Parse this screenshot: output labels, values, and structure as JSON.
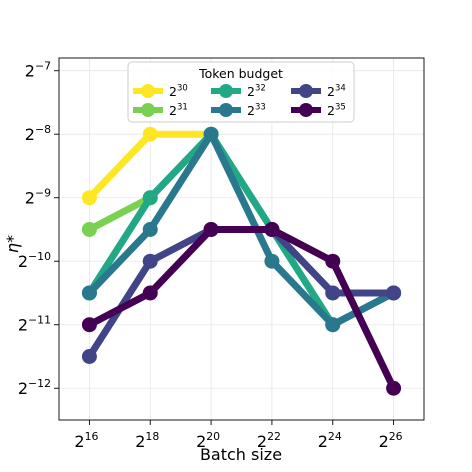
{
  "chart_data": {
    "type": "line",
    "xlabel": "Batch size",
    "ylabel": "η*",
    "x_scale": "log2",
    "y_scale": "log2",
    "x_exponents": [
      16,
      18,
      20,
      22,
      24,
      26
    ],
    "y_exponents": [
      -7,
      -8,
      -9,
      -10,
      -11,
      -12
    ],
    "xlim_log2": [
      15,
      27
    ],
    "ylim_log2": [
      -12.5,
      -6.8
    ],
    "grid": true,
    "legend": {
      "title": "Token budget",
      "placement": "top-center",
      "entries": [
        {
          "base": "2",
          "exp": "30"
        },
        {
          "base": "2",
          "exp": "31"
        },
        {
          "base": "2",
          "exp": "32"
        },
        {
          "base": "2",
          "exp": "33"
        },
        {
          "base": "2",
          "exp": "34"
        },
        {
          "base": "2",
          "exp": "35"
        }
      ]
    },
    "series": [
      {
        "name": "2^30",
        "color": "#fde725",
        "x_log2": [
          16,
          18,
          20
        ],
        "y_log2": [
          -9,
          -8,
          -8
        ]
      },
      {
        "name": "2^31",
        "color": "#7ad151",
        "x_log2": [
          16,
          18
        ],
        "y_log2": [
          -9.5,
          -9
        ]
      },
      {
        "name": "2^32",
        "color": "#22a884",
        "x_log2": [
          16,
          18,
          20,
          22,
          24,
          26
        ],
        "y_log2": [
          -10.5,
          -9,
          -8,
          -9.5,
          -11,
          -10.5
        ]
      },
      {
        "name": "2^33",
        "color": "#2a788e",
        "x_log2": [
          16,
          18,
          20,
          22,
          24,
          26
        ],
        "y_log2": [
          -10.5,
          -9.5,
          -8,
          -10,
          -11,
          -10.5
        ]
      },
      {
        "name": "2^34",
        "color": "#414487",
        "x_log2": [
          16,
          18,
          20,
          22,
          24,
          26
        ],
        "y_log2": [
          -11.5,
          -10,
          -9.5,
          -9.5,
          -10.5,
          -10.5
        ]
      },
      {
        "name": "2^35",
        "color": "#440154",
        "x_log2": [
          16,
          18,
          20,
          22,
          24,
          26
        ],
        "y_log2": [
          -11,
          -10.5,
          -9.5,
          -9.5,
          -10,
          -12
        ]
      }
    ]
  }
}
